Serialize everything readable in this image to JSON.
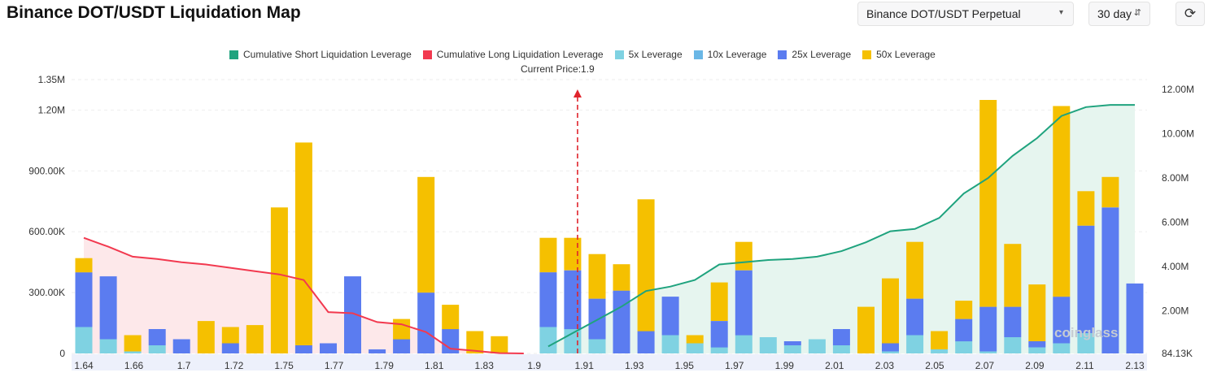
{
  "header": {
    "title": "Binance DOT/USDT Liquidation Map"
  },
  "controls": {
    "pair_select": "Binance DOT/USDT Perpetual",
    "period": "30 day",
    "refresh_icon": "refresh-icon"
  },
  "colors": {
    "short_line": "#1fa37e",
    "long_line": "#f2394f",
    "lev5": "#7fd2e2",
    "lev10": "#6ab7e6",
    "lev25": "#5b7cf0",
    "lev50": "#f5c000",
    "short_fill": "#e6f5ef",
    "long_fill": "#fde8ea"
  },
  "watermark": "coinglass",
  "chart_data": {
    "type": "bar",
    "current_price": "Current Price:1.9",
    "current_price_value": 1.9,
    "legend": [
      {
        "name": "Cumulative Short Liquidation Leverage",
        "color": "#1fa37e"
      },
      {
        "name": "Cumulative Long Liquidation Leverage",
        "color": "#f2394f"
      },
      {
        "name": "5x Leverage",
        "color": "#7fd2e2"
      },
      {
        "name": "10x Leverage",
        "color": "#6ab7e6"
      },
      {
        "name": "25x Leverage",
        "color": "#5b7cf0"
      },
      {
        "name": "50x Leverage",
        "color": "#f5c000"
      }
    ],
    "x_tick_labels": [
      "1.64",
      "1.66",
      "1.7",
      "1.72",
      "1.75",
      "1.77",
      "1.79",
      "1.81",
      "1.83",
      "1.9",
      "1.91",
      "1.93",
      "1.95",
      "1.97",
      "1.99",
      "2.01",
      "2.03",
      "2.05",
      "2.07",
      "2.09",
      "2.11",
      "2.13"
    ],
    "y_left_ticks": [
      "0",
      "300.00K",
      "600.00K",
      "900.00K",
      "1.20M",
      "1.35M"
    ],
    "y_left_values": [
      0,
      300000,
      600000,
      900000,
      1200000,
      1350000
    ],
    "y_right_ticks": [
      "84.13K",
      "2.00M",
      "4.00M",
      "6.00M",
      "8.00M",
      "10.00M",
      "12.00M"
    ],
    "y_right_values": [
      84130,
      2000000,
      4000000,
      6000000,
      8000000,
      10000000,
      12000000
    ],
    "ylim_left": [
      0,
      1350000
    ],
    "ylim_right": [
      84130,
      12000000
    ],
    "bars": [
      {
        "lev5": 130000,
        "lev10": 0,
        "lev25": 270000,
        "lev50": 70000
      },
      {
        "lev5": 70000,
        "lev10": 0,
        "lev25": 310000,
        "lev50": 0
      },
      {
        "lev5": 10000,
        "lev10": 0,
        "lev25": 0,
        "lev50": 80000
      },
      {
        "lev5": 40000,
        "lev10": 0,
        "lev25": 80000,
        "lev50": 0
      },
      {
        "lev5": 0,
        "lev10": 0,
        "lev25": 70000,
        "lev50": 0
      },
      {
        "lev5": 0,
        "lev10": 0,
        "lev25": 0,
        "lev50": 160000
      },
      {
        "lev5": 0,
        "lev10": 0,
        "lev25": 50000,
        "lev50": 80000
      },
      {
        "lev5": 0,
        "lev10": 0,
        "lev25": 0,
        "lev50": 140000
      },
      {
        "lev5": 0,
        "lev10": 0,
        "lev25": 0,
        "lev50": 720000
      },
      {
        "lev5": 0,
        "lev10": 0,
        "lev25": 40000,
        "lev50": 1000000
      },
      {
        "lev5": 0,
        "lev10": 0,
        "lev25": 50000,
        "lev50": 0
      },
      {
        "lev5": 0,
        "lev10": 0,
        "lev25": 380000,
        "lev50": 0
      },
      {
        "lev5": 0,
        "lev10": 0,
        "lev25": 20000,
        "lev50": 0
      },
      {
        "lev5": 0,
        "lev10": 0,
        "lev25": 70000,
        "lev50": 100000
      },
      {
        "lev5": 0,
        "lev10": 0,
        "lev25": 300000,
        "lev50": 570000
      },
      {
        "lev5": 0,
        "lev10": 0,
        "lev25": 120000,
        "lev50": 120000
      },
      {
        "lev5": 0,
        "lev10": 0,
        "lev25": 0,
        "lev50": 110000
      },
      {
        "lev5": 0,
        "lev10": 0,
        "lev25": 0,
        "lev50": 85000
      },
      {
        "lev5": 0,
        "lev10": 0,
        "lev25": 0,
        "lev50": 0
      },
      {
        "lev5": 130000,
        "lev10": 0,
        "lev25": 270000,
        "lev50": 170000
      },
      {
        "lev5": 120000,
        "lev10": 0,
        "lev25": 290000,
        "lev50": 160000
      },
      {
        "lev5": 70000,
        "lev10": 0,
        "lev25": 200000,
        "lev50": 220000
      },
      {
        "lev5": 0,
        "lev10": 0,
        "lev25": 310000,
        "lev50": 130000
      },
      {
        "lev5": 0,
        "lev10": 0,
        "lev25": 110000,
        "lev50": 650000
      },
      {
        "lev5": 90000,
        "lev10": 0,
        "lev25": 190000,
        "lev50": 0
      },
      {
        "lev5": 50000,
        "lev10": 0,
        "lev25": 0,
        "lev50": 40000
      },
      {
        "lev5": 30000,
        "lev10": 0,
        "lev25": 130000,
        "lev50": 190000
      },
      {
        "lev5": 90000,
        "lev10": 0,
        "lev25": 320000,
        "lev50": 140000
      },
      {
        "lev5": 80000,
        "lev10": 0,
        "lev25": 0,
        "lev50": 0
      },
      {
        "lev5": 40000,
        "lev10": 0,
        "lev25": 20000,
        "lev50": 0
      },
      {
        "lev5": 70000,
        "lev10": 0,
        "lev25": 0,
        "lev50": 0
      },
      {
        "lev5": 40000,
        "lev10": 0,
        "lev25": 80000,
        "lev50": 0
      },
      {
        "lev5": 0,
        "lev10": 0,
        "lev25": 0,
        "lev50": 230000
      },
      {
        "lev5": 10000,
        "lev10": 0,
        "lev25": 40000,
        "lev50": 320000
      },
      {
        "lev5": 90000,
        "lev10": 0,
        "lev25": 180000,
        "lev50": 280000
      },
      {
        "lev5": 20000,
        "lev10": 0,
        "lev25": 0,
        "lev50": 90000
      },
      {
        "lev5": 60000,
        "lev10": 0,
        "lev25": 110000,
        "lev50": 90000
      },
      {
        "lev5": 10000,
        "lev10": 0,
        "lev25": 220000,
        "lev50": 1020000
      },
      {
        "lev5": 80000,
        "lev10": 0,
        "lev25": 150000,
        "lev50": 310000
      },
      {
        "lev5": 30000,
        "lev10": 0,
        "lev25": 30000,
        "lev50": 280000
      },
      {
        "lev5": 50000,
        "lev10": 0,
        "lev25": 230000,
        "lev50": 940000
      },
      {
        "lev5": 100000,
        "lev10": 0,
        "lev25": 530000,
        "lev50": 170000
      },
      {
        "lev5": 0,
        "lev10": 0,
        "lev25": 720000,
        "lev50": 150000
      },
      {
        "lev5": 0,
        "lev10": 0,
        "lev25": 345000,
        "lev50": 0
      }
    ],
    "long_cumulative": {
      "x_index": [
        0,
        1,
        2,
        3,
        4,
        5,
        6,
        7,
        8,
        9,
        10,
        11,
        12,
        13,
        14,
        15,
        16,
        17,
        18
      ],
      "values": [
        5300000,
        4900000,
        4450000,
        4350000,
        4200000,
        4100000,
        3950000,
        3800000,
        3650000,
        3400000,
        1950000,
        1900000,
        1500000,
        1400000,
        1050000,
        300000,
        200000,
        100000,
        84130
      ]
    },
    "short_cumulative": {
      "x_index": [
        19,
        20,
        21,
        22,
        23,
        24,
        25,
        26,
        27,
        28,
        29,
        30,
        31,
        32,
        33,
        34,
        35,
        36,
        37,
        38,
        39,
        40,
        41,
        42,
        43
      ],
      "values": [
        400000,
        1000000,
        1600000,
        2200000,
        2900000,
        3100000,
        3400000,
        4100000,
        4200000,
        4300000,
        4350000,
        4450000,
        4700000,
        5100000,
        5600000,
        5700000,
        6200000,
        7300000,
        8000000,
        9000000,
        9800000,
        10800000,
        11200000,
        11300000,
        11300000
      ]
    },
    "current_price_index": 20.2
  }
}
